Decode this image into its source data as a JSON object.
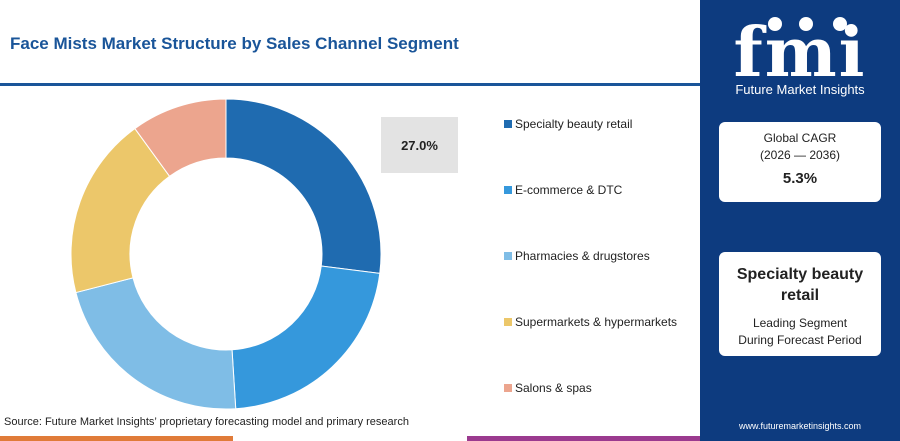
{
  "title": "Face Mists Market Structure by Sales Channel Segment",
  "callout_value": "27.0%",
  "source": "Source: Future Market Insights’ proprietary forecasting model and primary research",
  "sidebar": {
    "logo": "fmi",
    "logo_subtitle": "Future Market Insights",
    "cagr_label_line1": "Global CAGR",
    "cagr_label_line2": "(2026 — 2036)",
    "cagr_value": "5.3%",
    "leading_segment": "Specialty beauty retail",
    "leading_label_line1": "Leading Segment",
    "leading_label_line2": "During Forecast Period",
    "website": "www.futuremarketinsights.com"
  },
  "colors": {
    "brand": "#0d3b7f",
    "title": "#1a5599",
    "bar": [
      "#e07b39",
      "#ffffff",
      "#9b3a8f",
      "#0d3b7f"
    ]
  },
  "chart_data": {
    "type": "pie",
    "donut": true,
    "categories": [
      "Specialty beauty retail",
      "E-commerce & DTC",
      "Pharmacies & drugstores",
      "Supermarkets & hypermarkets",
      "Salons & spas"
    ],
    "values": [
      27.0,
      22.0,
      22.0,
      19.0,
      10.0
    ],
    "colors": [
      "#1f6bb0",
      "#3598dc",
      "#7fbde6",
      "#ecc76a",
      "#eca58e"
    ],
    "legend_position": "right"
  }
}
